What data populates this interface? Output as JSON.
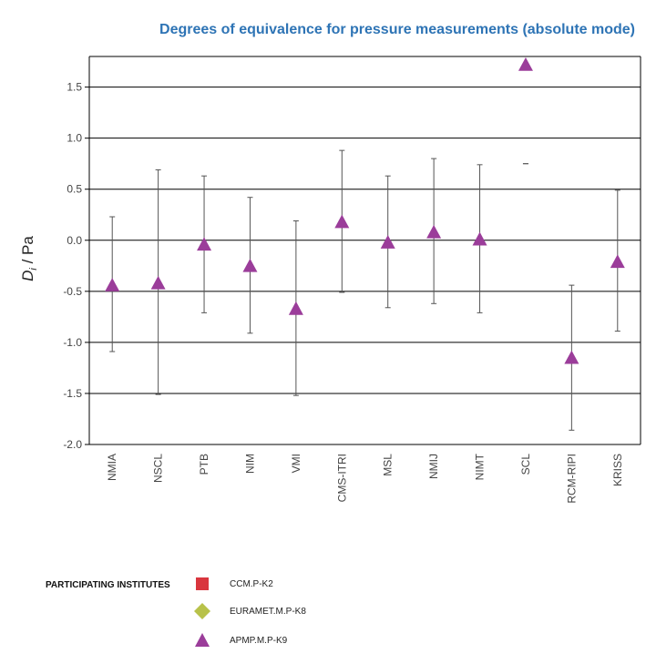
{
  "chart_data": {
    "type": "scatter",
    "title": "Degrees of equivalence for pressure measurements (absolute mode)",
    "ylabel": "D_i / Pa",
    "ylabel_parts": {
      "main": "D",
      "sub": "i",
      "unit": " / Pa"
    },
    "ylim": [
      -2.0,
      1.8
    ],
    "yticks": [
      1.5,
      1.0,
      0.5,
      0.0,
      -0.5,
      -1.0,
      -1.5,
      -2.0
    ],
    "ytick_labels": [
      "1.5",
      "1.0",
      "0.5",
      "0.0",
      "-0.5",
      "-1.0",
      "-1.5",
      "-2.0"
    ],
    "grid": true,
    "categories": [
      "NMIA",
      "NSCL",
      "PTB",
      "NIM",
      "VMI",
      "CMS-ITRI",
      "MSL",
      "NMIJ",
      "NIMT",
      "SCL",
      "RCM-RIPI",
      "KRISS"
    ],
    "series": [
      {
        "name": "APMP.M.P-K9",
        "color": "#9b3d9a",
        "marker": "triangle",
        "values": [
          -0.44,
          -0.42,
          -0.04,
          -0.25,
          -0.67,
          0.18,
          -0.02,
          0.08,
          0.01,
          1.72,
          -1.15,
          -0.21
        ],
        "error_upper": [
          0.23,
          0.69,
          0.63,
          0.42,
          0.19,
          0.88,
          0.63,
          0.8,
          0.74,
          0.75,
          -0.44,
          0.49
        ],
        "error_lower": [
          -1.09,
          -1.51,
          -0.71,
          -0.91,
          -1.52,
          -0.51,
          -0.66,
          -0.62,
          -0.71,
          0.75,
          -1.86,
          -0.89
        ]
      }
    ],
    "legend": {
      "title": "PARTICIPATING INSTITUTES",
      "placement": "bottom",
      "items": [
        {
          "label": "CCM.P-K2",
          "color": "#d9363e",
          "marker": "square"
        },
        {
          "label": "EURAMET.M.P-K8",
          "color": "#b8c24a",
          "marker": "diamond"
        },
        {
          "label": "APMP.M.P-K9",
          "color": "#9b3d9a",
          "marker": "triangle"
        }
      ]
    }
  }
}
